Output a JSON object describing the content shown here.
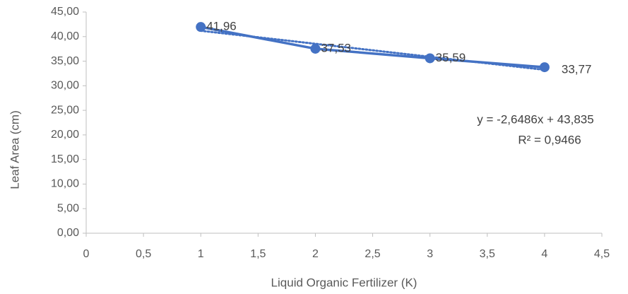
{
  "chart_data": {
    "type": "line",
    "xlabel": "Liquid Organic Fertilizer (K)",
    "ylabel": "Leaf Area (cm)",
    "x": [
      1,
      2,
      3,
      4
    ],
    "series": [
      {
        "name": null,
        "color": "#4472c4",
        "values": [
          41.96,
          37.53,
          35.59,
          33.77
        ],
        "value_labels": [
          "41,96",
          "37,53",
          "35,59",
          "33,77"
        ]
      }
    ],
    "trendline": {
      "slope": -2.6486,
      "intercept": 43.835,
      "equation": "y = -2,6486x + 43,835",
      "r_squared": "R² = 0,9466"
    },
    "xlim": [
      0,
      4.5
    ],
    "xticks": [
      0,
      {
        "value": 0.5,
        "label": "0,5"
      },
      1,
      {
        "value": 1.5,
        "label": "1,5"
      },
      2,
      {
        "value": 2.5,
        "label": "2,5"
      },
      3,
      {
        "value": 3.5,
        "label": "3,5"
      },
      4,
      {
        "value": 4.5,
        "label": "4,5"
      }
    ],
    "ylim": [
      0,
      45
    ],
    "yticks": [
      {
        "value": 0,
        "label": "0,00"
      },
      {
        "value": 5,
        "label": "5,00"
      },
      {
        "value": 10,
        "label": "10,00"
      },
      {
        "value": 15,
        "label": "15,00"
      },
      {
        "value": 20,
        "label": "20,00"
      },
      {
        "value": 25,
        "label": "25,00"
      },
      {
        "value": 30,
        "label": "30,00"
      },
      {
        "value": 35,
        "label": "35,00"
      },
      {
        "value": 40,
        "label": "40,00"
      },
      {
        "value": 45,
        "label": "45,00"
      }
    ],
    "grid": false
  }
}
